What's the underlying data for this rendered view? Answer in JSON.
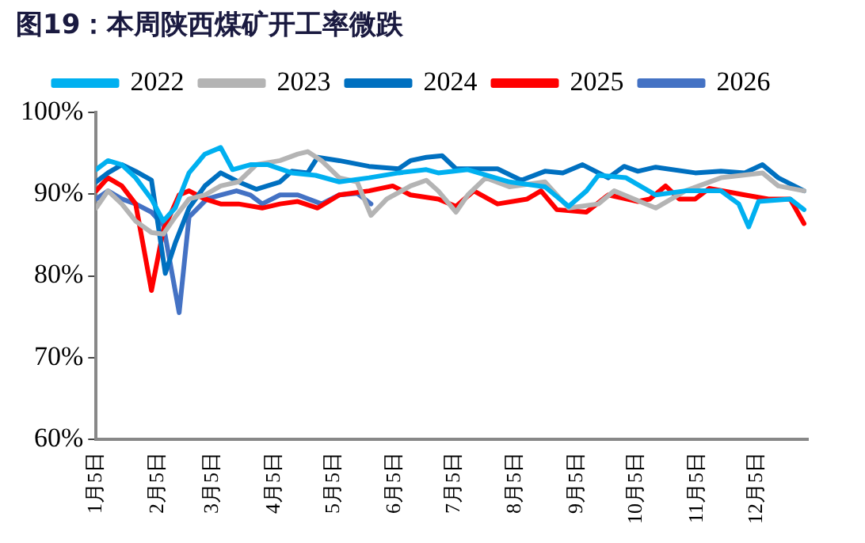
{
  "chart_data": {
    "type": "line",
    "title": "图19：本周陕西煤矿开工率微跌",
    "xlim": [
      "--01-05",
      "--12-31"
    ],
    "xticks": [
      {
        "value": "--01-05",
        "label": "1月5日"
      },
      {
        "value": "--02-05",
        "label": "2月5日"
      },
      {
        "value": "--03-05",
        "label": "3月5日"
      },
      {
        "value": "--04-05",
        "label": "4月5日"
      },
      {
        "value": "--05-05",
        "label": "5月5日"
      },
      {
        "value": "--06-05",
        "label": "6月5日"
      },
      {
        "value": "--07-05",
        "label": "7月5日"
      },
      {
        "value": "--08-05",
        "label": "8月5日"
      },
      {
        "value": "--09-05",
        "label": "9月5日"
      },
      {
        "value": "--10-05",
        "label": "10月5日"
      },
      {
        "value": "--11-05",
        "label": "11月5日"
      },
      {
        "value": "--12-05",
        "label": "12月5日"
      }
    ],
    "ylim": [
      60,
      100
    ],
    "yticks": [
      {
        "value": 60,
        "label": "60%"
      },
      {
        "value": 70,
        "label": "70%"
      },
      {
        "value": 80,
        "label": "80%"
      },
      {
        "value": 90,
        "label": "90%"
      },
      {
        "value": 100,
        "label": "100%"
      }
    ],
    "grid": false,
    "legend": "top",
    "marker": "none",
    "line_style": "solid",
    "series": [
      {
        "name": "2022",
        "color": "#00b0f0",
        "x": [
          "--01-05",
          "--01-11",
          "--01-18",
          "--01-25",
          "--02-02",
          "--02-08",
          "--02-14",
          "--02-21",
          "--03-01",
          "--03-09",
          "--03-15",
          "--03-24",
          "--04-02",
          "--04-14",
          "--04-26",
          "--05-08",
          "--05-23",
          "--06-07",
          "--06-21",
          "--06-27",
          "--07-12",
          "--08-02",
          "--08-20",
          "--09-01",
          "--09-10",
          "--09-16",
          "--09-30",
          "--10-15",
          "--10-30",
          "--11-17",
          "--11-26",
          "--12-01",
          "--12-06",
          "--12-22",
          "--12-29"
        ],
        "values": [
          93,
          94.1,
          93.6,
          92,
          89.4,
          86.7,
          88.3,
          92.6,
          94.9,
          95.7,
          93,
          93.6,
          93.6,
          92.6,
          92.3,
          91.5,
          92,
          92.6,
          93,
          92.6,
          93,
          91.5,
          90.9,
          88.5,
          90.4,
          92.3,
          92,
          89.9,
          90.4,
          90.4,
          88.8,
          86,
          89.1,
          89.4,
          88.1
        ]
      },
      {
        "name": "2023",
        "color": "#b4b4b4",
        "x": [
          "--01-05",
          "--01-11",
          "--01-18",
          "--01-25",
          "--02-02",
          "--02-08",
          "--02-14",
          "--02-21",
          "--03-01",
          "--03-09",
          "--03-18",
          "--03-27",
          "--04-08",
          "--04-17",
          "--04-22",
          "--04-29",
          "--05-08",
          "--05-17",
          "--05-24",
          "--06-01",
          "--06-13",
          "--06-21",
          "--06-27",
          "--07-06",
          "--07-12",
          "--07-21",
          "--08-02",
          "--08-20",
          "--09-01",
          "--09-16",
          "--09-24",
          "--10-15",
          "--10-30",
          "--11-17",
          "--12-08",
          "--12-16",
          "--12-29"
        ],
        "values": [
          88.3,
          90.4,
          88.8,
          86.7,
          85.3,
          85.1,
          87.2,
          89.4,
          89.9,
          91,
          91.5,
          93.6,
          94.1,
          94.9,
          95.2,
          94.1,
          92,
          91.5,
          87.4,
          89.4,
          91,
          91.7,
          90.4,
          87.8,
          89.9,
          92,
          90.9,
          91.5,
          88.3,
          88.8,
          90.4,
          88.3,
          90.4,
          92,
          92.6,
          91,
          90.4
        ]
      },
      {
        "name": "2024",
        "color": "#0070c0",
        "x": [
          "--01-05",
          "--01-11",
          "--01-18",
          "--01-25",
          "--02-02",
          "--02-09",
          "--02-14",
          "--02-21",
          "--03-01",
          "--03-09",
          "--03-18",
          "--03-27",
          "--04-08",
          "--04-14",
          "--04-22",
          "--04-27",
          "--05-08",
          "--05-23",
          "--06-07",
          "--06-13",
          "--06-21",
          "--06-29",
          "--07-06",
          "--07-27",
          "--08-08",
          "--08-20",
          "--08-29",
          "--09-08",
          "--09-21",
          "--09-29",
          "--10-06",
          "--10-15",
          "--11-04",
          "--11-17",
          "--11-29",
          "--12-08",
          "--12-16",
          "--12-29"
        ],
        "values": [
          91.5,
          92.6,
          93.6,
          92.8,
          91.7,
          80.3,
          84,
          88.3,
          91,
          92.6,
          91.5,
          90.6,
          91.5,
          92.8,
          92.6,
          94.5,
          94.1,
          93.4,
          93.1,
          94.1,
          94.5,
          94.7,
          93.1,
          93.1,
          91.7,
          92.8,
          92.6,
          93.6,
          92,
          93.4,
          92.8,
          93.3,
          92.6,
          92.8,
          92.6,
          93.6,
          92,
          90.4
        ]
      },
      {
        "name": "2025",
        "color": "#ff0000",
        "x": [
          "--01-05",
          "--01-11",
          "--01-18",
          "--01-25",
          "--02-02",
          "--02-08",
          "--02-16",
          "--02-21",
          "--03-01",
          "--03-09",
          "--03-18",
          "--03-30",
          "--04-08",
          "--04-17",
          "--04-27",
          "--05-08",
          "--05-23",
          "--06-04",
          "--06-13",
          "--06-27",
          "--07-06",
          "--07-15",
          "--07-27",
          "--08-11",
          "--08-18",
          "--08-26",
          "--09-10",
          "--09-21",
          "--10-06",
          "--10-12",
          "--10-20",
          "--10-27",
          "--11-04",
          "--11-11",
          "--11-29",
          "--12-11",
          "--12-22",
          "--12-29"
        ],
        "values": [
          90.4,
          92,
          91,
          88.8,
          78.2,
          85.6,
          89.9,
          90.4,
          89.4,
          88.8,
          88.8,
          88.3,
          88.8,
          89.1,
          88.3,
          89.9,
          90.4,
          91,
          89.9,
          89.4,
          88.5,
          90.4,
          88.8,
          89.4,
          90.4,
          88.1,
          87.8,
          89.9,
          89.1,
          89.4,
          91,
          89.4,
          89.4,
          90.7,
          89.9,
          89.4,
          89.4,
          86.4
        ]
      },
      {
        "name": "2026",
        "color": "#4472c4",
        "x": [
          "--01-05",
          "--01-11",
          "--01-18",
          "--01-25",
          "--02-02",
          "--02-08",
          "--02-16",
          "--02-21",
          "--03-02",
          "--03-09",
          "--03-17",
          "--03-24",
          "--03-30",
          "--04-08",
          "--04-17",
          "--04-29",
          "--05-08",
          "--05-17",
          "--05-24"
        ],
        "values": [
          89.4,
          90.4,
          89.4,
          88.8,
          87.8,
          86.2,
          75.5,
          87.2,
          89.4,
          89.9,
          90.4,
          89.9,
          88.8,
          89.9,
          89.9,
          88.8,
          89.9,
          90.1,
          88.8
        ]
      }
    ]
  }
}
